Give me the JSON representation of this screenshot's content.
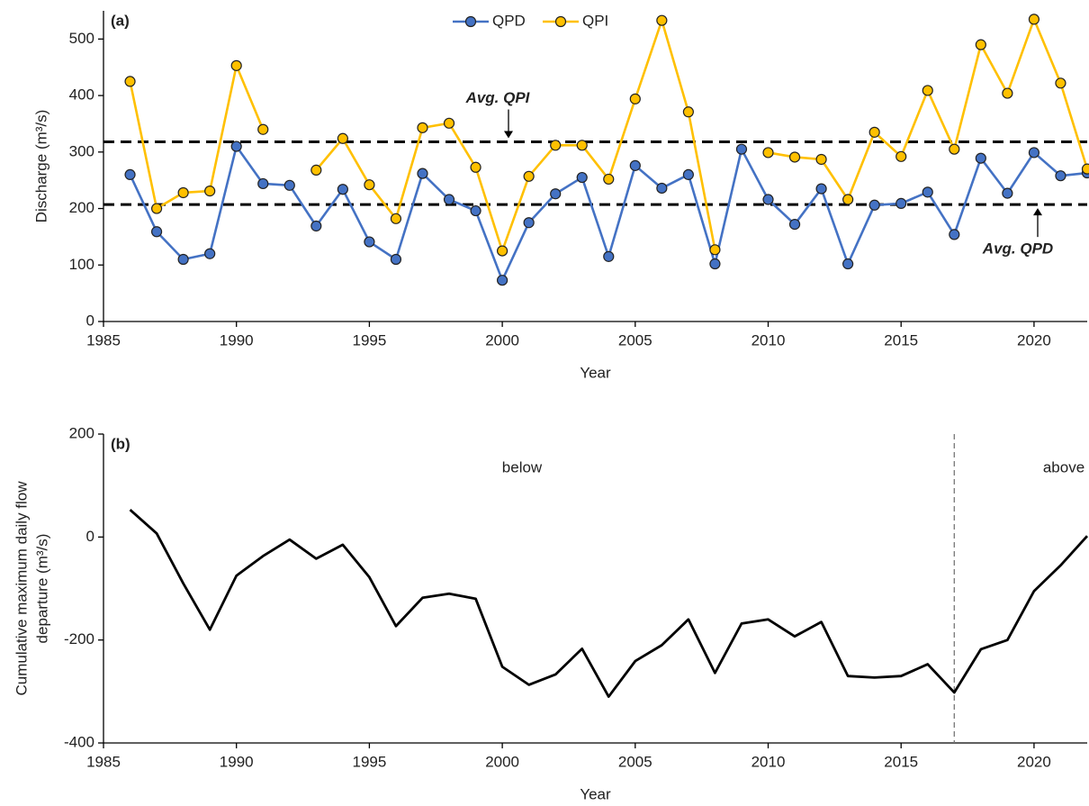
{
  "chart_data": [
    {
      "type": "line",
      "panel_label": "(a)",
      "x_label": "Year",
      "y_label": [
        "Discharge (m³/s)"
      ],
      "x": [
        1986,
        1987,
        1988,
        1989,
        1990,
        1991,
        1992,
        1993,
        1994,
        1995,
        1996,
        1997,
        1998,
        1999,
        2000,
        2001,
        2002,
        2003,
        2004,
        2005,
        2006,
        2007,
        2008,
        2009,
        2010,
        2011,
        2012,
        2013,
        2014,
        2015,
        2016,
        2017,
        2018,
        2019,
        2020,
        2021,
        2022
      ],
      "series": [
        {
          "name": "QPD",
          "color": "#4472c4",
          "values": [
            260,
            159,
            110,
            120,
            310,
            244,
            241,
            169,
            234,
            141,
            110,
            262,
            216,
            196,
            73,
            175,
            226,
            255,
            115,
            276,
            236,
            260,
            102,
            305,
            216,
            172,
            235,
            102,
            206,
            209,
            229,
            154,
            289,
            227,
            299,
            258,
            263
          ]
        },
        {
          "name": "QPI",
          "color": "#ffc000",
          "values": [
            425,
            200,
            228,
            231,
            453,
            340,
            null,
            268,
            324,
            242,
            182,
            343,
            351,
            273,
            125,
            257,
            312,
            312,
            252,
            394,
            533,
            371,
            127,
            null,
            299,
            291,
            287,
            216,
            335,
            292,
            409,
            305,
            490,
            404,
            535,
            422,
            270
          ]
        }
      ],
      "markers": true,
      "reference_lines": [
        {
          "value": 318,
          "label": "Avg. QPI"
        },
        {
          "value": 207,
          "label": "Avg. QPD"
        }
      ],
      "xlim": [
        1985,
        2022
      ],
      "xticks": [
        1985,
        1990,
        1995,
        2000,
        2005,
        2010,
        2015,
        2020
      ],
      "ylim": [
        0,
        550
      ],
      "yticks": [
        0,
        100,
        200,
        300,
        400,
        500
      ],
      "legend": "top"
    },
    {
      "type": "line",
      "panel_label": "(b)",
      "x_label": "Year",
      "y_label": [
        "Cumulative maximum daily flow",
        "departure (m³/s)"
      ],
      "x": [
        1986,
        1987,
        1988,
        1989,
        1990,
        1991,
        1992,
        1993,
        1994,
        1995,
        1996,
        1997,
        1998,
        1999,
        2000,
        2001,
        2002,
        2003,
        2004,
        2005,
        2006,
        2007,
        2008,
        2009,
        2010,
        2011,
        2012,
        2013,
        2014,
        2015,
        2016,
        2017,
        2018,
        2019,
        2020,
        2021,
        2022
      ],
      "series": [
        {
          "color": "#000000",
          "values": [
            53,
            7,
            -90,
            -180,
            -75,
            -37,
            -5,
            -42,
            -15,
            -78,
            -173,
            -118,
            -110,
            -120,
            -252,
            -287,
            -267,
            -217,
            -310,
            -241,
            -210,
            -160,
            -264,
            -168,
            -160,
            -193,
            -165,
            -270,
            -273,
            -270,
            -247,
            -302,
            -218,
            -200,
            -105,
            -55,
            2
          ]
        }
      ],
      "markers": false,
      "divider": 2017,
      "region_labels": [
        "below",
        "above"
      ],
      "xlim": [
        1985,
        2022
      ],
      "xticks": [
        1985,
        1990,
        1995,
        2000,
        2005,
        2010,
        2015,
        2020
      ],
      "ylim": [
        -400,
        200
      ],
      "yticks": [
        -400,
        -200,
        0,
        200
      ]
    }
  ]
}
